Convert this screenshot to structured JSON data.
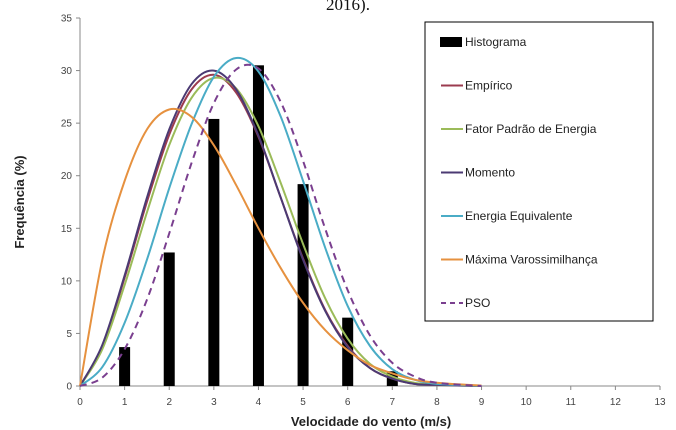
{
  "header_fragment": "2016).",
  "chart_data": {
    "type": "line",
    "xlabel": "Velocidade do vento (m/s)",
    "ylabel": "Frequência (%)",
    "xlim": [
      0,
      13
    ],
    "ylim": [
      0,
      35
    ],
    "xticks": [
      0,
      1,
      2,
      3,
      4,
      5,
      6,
      7,
      8,
      9,
      10,
      11,
      12,
      13
    ],
    "yticks": [
      0,
      5,
      10,
      15,
      20,
      25,
      30,
      35
    ],
    "grid": false,
    "legend_position": "top-right",
    "histogram": {
      "name": "Histograma",
      "color": "#000000",
      "x": [
        1,
        2,
        3,
        4,
        5,
        6,
        7
      ],
      "values": [
        3.7,
        12.7,
        25.4,
        30.5,
        19.2,
        6.5,
        1.4
      ]
    },
    "curves": [
      {
        "name": "Empírico",
        "color": "#9b3b4f",
        "dash": false,
        "x": [
          0,
          0.5,
          1,
          1.5,
          2,
          2.5,
          3,
          3.5,
          4,
          4.5,
          5,
          5.5,
          6,
          6.5,
          7,
          7.5,
          8,
          9
        ],
        "values": [
          0,
          3.8,
          10.3,
          17.5,
          23.9,
          28.2,
          29.6,
          27.9,
          23.7,
          17.9,
          12.1,
          7.2,
          3.8,
          1.7,
          0.7,
          0.2,
          0.1,
          0
        ]
      },
      {
        "name": "Fator Padrão de Energia",
        "color": "#9bbb59",
        "dash": false,
        "x": [
          0,
          0.5,
          1,
          1.5,
          2,
          2.5,
          3,
          3.5,
          4,
          4.5,
          5,
          5.5,
          6,
          6.5,
          7,
          7.5,
          8,
          9
        ],
        "values": [
          0,
          3.5,
          9.6,
          16.5,
          22.9,
          27.4,
          29.3,
          28.3,
          24.7,
          19.3,
          13.5,
          8.3,
          4.5,
          2.1,
          0.9,
          0.3,
          0.1,
          0
        ]
      },
      {
        "name": "Momento",
        "color": "#4b3a73",
        "dash": false,
        "x": [
          0,
          0.5,
          1,
          1.5,
          2,
          2.5,
          3,
          3.5,
          4,
          4.5,
          5,
          5.5,
          6,
          6.5,
          7,
          7.5,
          8,
          9
        ],
        "values": [
          0,
          3.9,
          10.5,
          17.9,
          24.4,
          28.7,
          30.0,
          28.2,
          23.8,
          17.9,
          12.0,
          7.1,
          3.7,
          1.7,
          0.7,
          0.2,
          0.1,
          0
        ]
      },
      {
        "name": "Energia Equivalente",
        "color": "#4aacc6",
        "dash": false,
        "x": [
          0,
          0.5,
          1,
          1.5,
          2,
          2.5,
          3,
          3.5,
          4,
          4.5,
          5,
          5.5,
          6,
          6.5,
          7,
          7.5,
          8,
          9
        ],
        "values": [
          0,
          1.8,
          6.0,
          12.0,
          18.8,
          24.9,
          29.4,
          31.2,
          29.9,
          25.6,
          19.5,
          13.1,
          7.6,
          3.8,
          1.6,
          0.6,
          0.2,
          0
        ]
      },
      {
        "name": "Máxima Varossimilhança",
        "color": "#e6913f",
        "dash": false,
        "x": [
          0,
          0.5,
          1,
          1.5,
          2,
          2.5,
          3,
          3.5,
          4,
          4.5,
          5,
          5.5,
          6,
          6.5,
          7,
          7.5,
          8,
          8.5,
          9
        ],
        "values": [
          0,
          12.0,
          19.5,
          24.4,
          26.3,
          25.6,
          22.9,
          19.1,
          15.0,
          11.2,
          7.9,
          5.3,
          3.4,
          2.0,
          1.2,
          0.6,
          0.3,
          0.15,
          0.05
        ]
      },
      {
        "name": "PSO",
        "color": "#7a3f8f",
        "dash": true,
        "x": [
          0,
          0.5,
          1,
          1.5,
          2,
          2.5,
          3,
          3.5,
          4,
          4.5,
          5,
          5.5,
          6,
          6.5,
          7,
          7.5,
          8,
          9
        ],
        "values": [
          0,
          0.8,
          3.5,
          8.2,
          14.5,
          21.2,
          26.9,
          30.1,
          30.2,
          27.0,
          21.4,
          14.9,
          9.1,
          4.8,
          2.2,
          0.9,
          0.3,
          0
        ]
      }
    ]
  }
}
